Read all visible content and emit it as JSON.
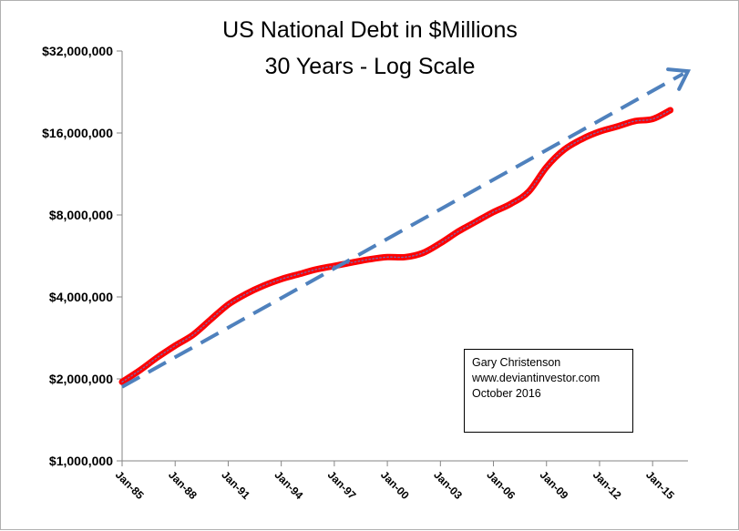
{
  "chart_data": {
    "type": "line",
    "title": [
      "US National Debt in $Millions",
      "30 Years - Log Scale"
    ],
    "y_scale": "log2",
    "ylim": [
      1000000,
      32000000
    ],
    "y_ticks": [
      1000000,
      2000000,
      4000000,
      8000000,
      16000000,
      32000000
    ],
    "y_tick_labels": [
      "$1,000,000",
      "$2,000,000",
      "$4,000,000",
      "$8,000,000",
      "$16,000,000",
      "$32,000,000"
    ],
    "x_start": "Jan-85",
    "x_end": "Jan-17",
    "x_tick_labels": [
      "Jan-85",
      "Jan-88",
      "Jan-91",
      "Jan-94",
      "Jan-97",
      "Jan-00",
      "Jan-03",
      "Jan-06",
      "Jan-09",
      "Jan-12",
      "Jan-15"
    ],
    "grid": false,
    "series": [
      {
        "style": "solid",
        "color": "#ff0000",
        "inner_color": "#8064a2",
        "x": [
          "Jan-85",
          "Jan-86",
          "Jan-87",
          "Jan-88",
          "Jan-89",
          "Jan-90",
          "Jan-91",
          "Jan-92",
          "Jan-93",
          "Jan-94",
          "Jan-95",
          "Jan-96",
          "Jan-97",
          "Jan-98",
          "Jan-99",
          "Jan-00",
          "Jan-01",
          "Jan-02",
          "Jan-03",
          "Jan-04",
          "Jan-05",
          "Jan-06",
          "Jan-07",
          "Jan-08",
          "Jan-09",
          "Jan-10",
          "Jan-11",
          "Jan-12",
          "Jan-13",
          "Jan-14",
          "Jan-15",
          "Jan-16"
        ],
        "values": [
          1950000,
          2150000,
          2400000,
          2650000,
          2900000,
          3300000,
          3750000,
          4100000,
          4400000,
          4650000,
          4850000,
          5050000,
          5200000,
          5350000,
          5500000,
          5600000,
          5600000,
          5800000,
          6300000,
          6950000,
          7550000,
          8200000,
          8800000,
          9750000,
          12000000,
          13900000,
          15200000,
          16200000,
          16900000,
          17700000,
          18000000,
          19400000
        ]
      },
      {
        "style": "dashed",
        "color": "#4f81bd",
        "arrow": true,
        "x": [
          "Jan-85",
          "Jan-17"
        ],
        "values": [
          1870000,
          27000000
        ]
      }
    ]
  },
  "note": {
    "lines": [
      "Gary Christenson",
      "www.deviantinvestor.com",
      "October 2016"
    ]
  }
}
